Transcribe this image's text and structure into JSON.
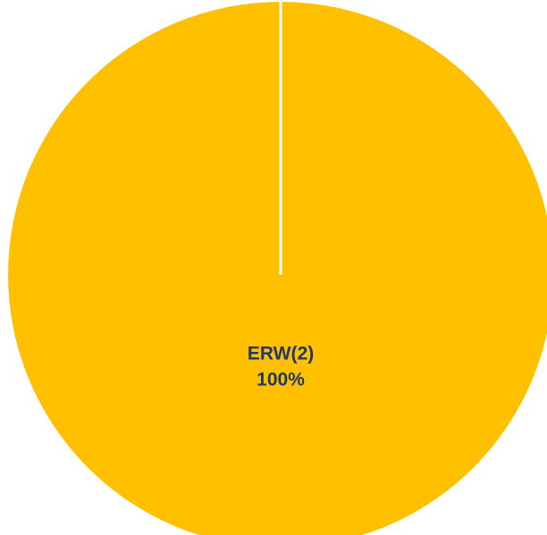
{
  "chart_data": {
    "type": "pie",
    "title": "",
    "slices": [
      {
        "label": "ERW(2)",
        "value": 100,
        "percent_label": "100%",
        "color": "#FFC000"
      }
    ],
    "label_color": "#203864",
    "separator_color": "#FFFFFF",
    "legend": "none"
  }
}
